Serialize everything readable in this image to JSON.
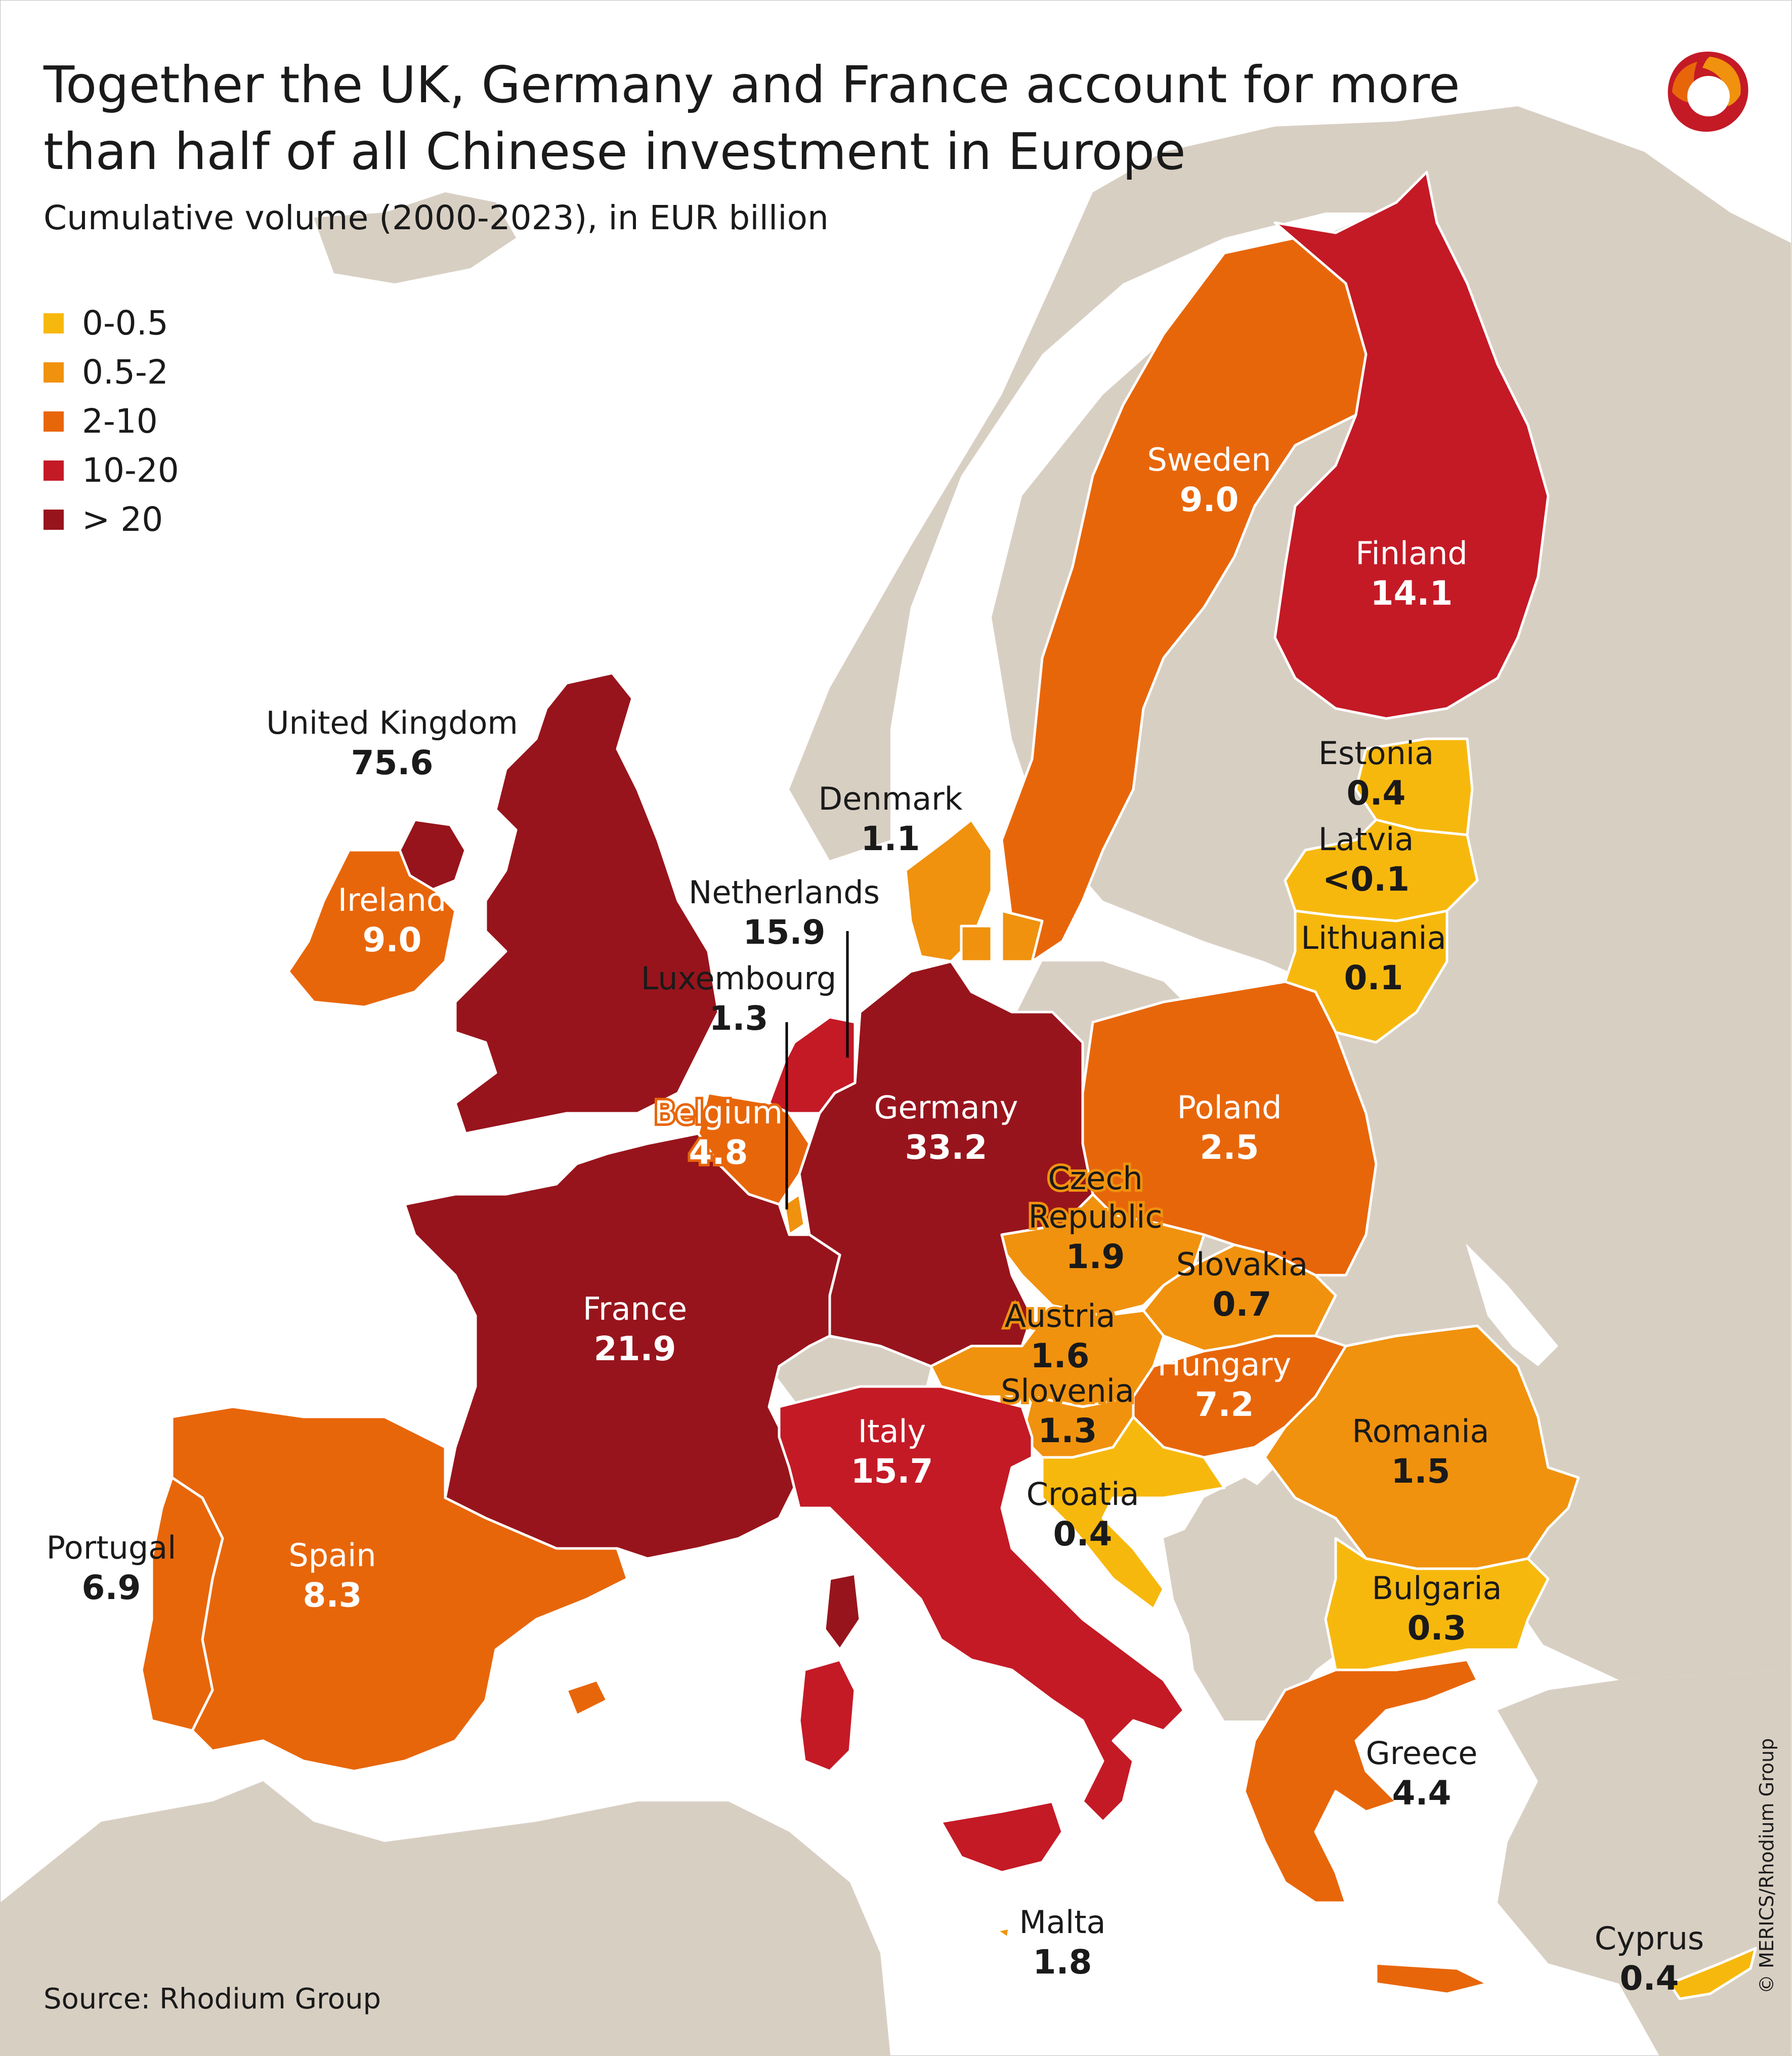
{
  "title": "Together the UK, Germany and France account for more than half of all Chinese investment in Europe",
  "subtitle": "Cumulative volume (2000-2023), in EUR billion",
  "source": "Source: Rhodium Group",
  "credit": "© MERICS/Rhodium Group",
  "legend": [
    {
      "label": "0-0.5",
      "color": "#f7b80e"
    },
    {
      "label": "0.5-2",
      "color": "#f0920e"
    },
    {
      "label": "2-10",
      "color": "#e8660a"
    },
    {
      "label": "10-20",
      "color": "#c41a26"
    },
    {
      "label": "> 20",
      "color": "#98141c"
    }
  ],
  "colors": {
    "sea": "#ffffff",
    "non_eu_land": "#d8cfc3",
    "border": "#ffffff"
  },
  "countries": [
    {
      "name": "United Kingdom",
      "value": "75.6"
    },
    {
      "name": "Ireland",
      "value": "9.0"
    },
    {
      "name": "Sweden",
      "value": "9.0"
    },
    {
      "name": "Finland",
      "value": "14.1"
    },
    {
      "name": "Estonia",
      "value": "0.4"
    },
    {
      "name": "Latvia",
      "value": "<0.1"
    },
    {
      "name": "Lithuania",
      "value": "0.1"
    },
    {
      "name": "Denmark",
      "value": "1.1"
    },
    {
      "name": "Netherlands",
      "value": "15.9"
    },
    {
      "name": "Luxembourg",
      "value": "1.3"
    },
    {
      "name": "Belgium",
      "value": "4.8"
    },
    {
      "name": "Germany",
      "value": "33.2"
    },
    {
      "name": "Poland",
      "value": "2.5"
    },
    {
      "name": "Czech Republic",
      "value": "1.9"
    },
    {
      "name": "Slovakia",
      "value": "0.7"
    },
    {
      "name": "Austria",
      "value": "1.6"
    },
    {
      "name": "Hungary",
      "value": "7.2"
    },
    {
      "name": "Slovenia",
      "value": "1.3"
    },
    {
      "name": "France",
      "value": "21.9"
    },
    {
      "name": "Italy",
      "value": "15.7"
    },
    {
      "name": "Croatia",
      "value": "0.4"
    },
    {
      "name": "Romania",
      "value": "1.5"
    },
    {
      "name": "Bulgaria",
      "value": "0.3"
    },
    {
      "name": "Greece",
      "value": "4.4"
    },
    {
      "name": "Portugal",
      "value": "6.9"
    },
    {
      "name": "Spain",
      "value": "8.3"
    },
    {
      "name": "Malta",
      "value": "1.8"
    },
    {
      "name": "Cyprus",
      "value": "0.4"
    }
  ]
}
